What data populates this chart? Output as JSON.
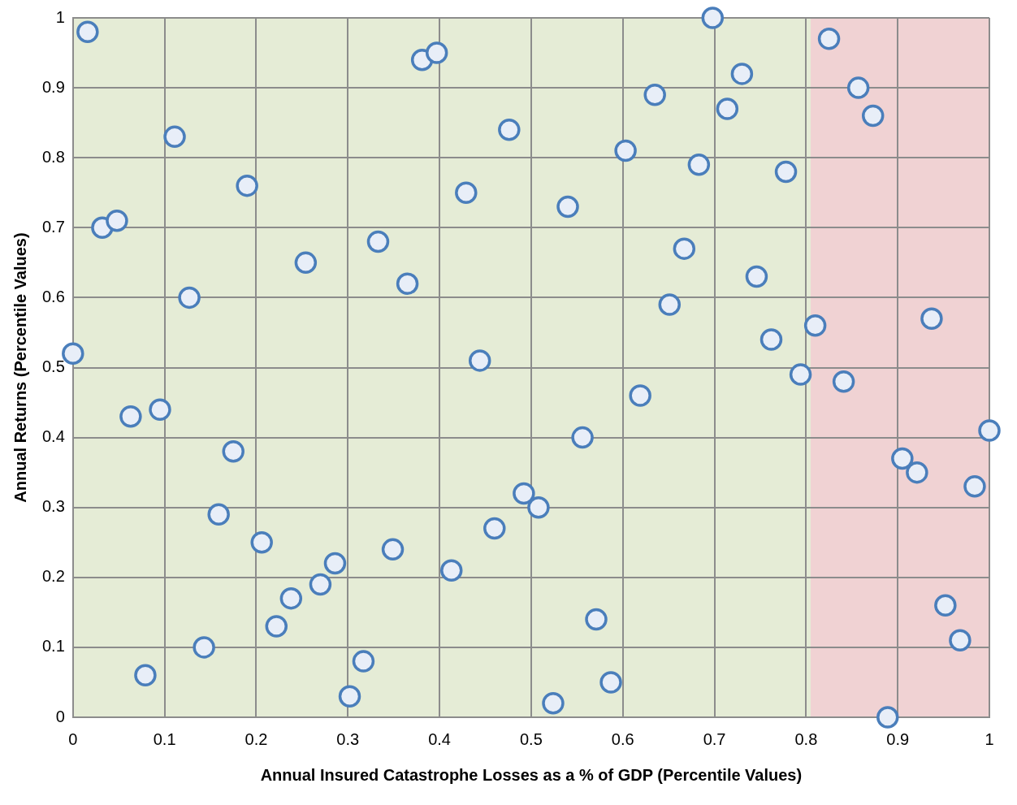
{
  "chart_data": {
    "type": "scatter",
    "xlabel": "Annual Insured Catastrophe Losses as a % of GDP (Percentile Values)",
    "ylabel": "Annual Returns (Percentile Values)",
    "x": [
      0,
      0.016,
      0.032,
      0.048,
      0.063,
      0.079,
      0.095,
      0.111,
      0.127,
      0.143,
      0.159,
      0.175,
      0.19,
      0.206,
      0.222,
      0.238,
      0.254,
      0.27,
      0.286,
      0.302,
      0.317,
      0.333,
      0.349,
      0.365,
      0.381,
      0.397,
      0.413,
      0.429,
      0.444,
      0.46,
      0.476,
      0.492,
      0.508,
      0.524,
      0.54,
      0.556,
      0.571,
      0.587,
      0.603,
      0.619,
      0.635,
      0.651,
      0.667,
      0.683,
      0.698,
      0.714,
      0.73,
      0.746,
      0.762,
      0.778,
      0.794,
      0.81,
      0.825,
      0.841,
      0.857,
      0.873,
      0.889,
      0.905,
      0.921,
      0.937,
      0.952,
      0.968,
      0.984,
      1
    ],
    "series": [
      {
        "color": "#4a7ebb",
        "values": [
          0.52,
          0.98,
          0.7,
          0.71,
          0.43,
          0.06,
          0.44,
          0.83,
          0.6,
          0.1,
          0.29,
          0.38,
          0.76,
          0.25,
          0.13,
          0.17,
          0.65,
          0.19,
          0.22,
          0.03,
          0.08,
          0.68,
          0.24,
          0.62,
          0.94,
          0.95,
          0.21,
          0.75,
          0.51,
          0.27,
          0.84,
          0.32,
          0.3,
          0.02,
          0.73,
          0.4,
          0.14,
          0.05,
          0.81,
          0.46,
          0.89,
          0.59,
          0.67,
          0.79,
          1,
          0.87,
          0.92,
          0.63,
          0.54,
          0.78,
          0.49,
          0.56,
          0.97,
          0.48,
          0.9,
          0.86,
          0,
          0.37,
          0.35,
          0.57,
          0.16,
          0.11,
          0.33,
          0.41
        ]
      }
    ],
    "xlim": [
      0,
      1
    ],
    "ylim": [
      0,
      1
    ],
    "xticks": [
      0,
      0.1,
      0.2,
      0.3,
      0.4,
      0.5,
      0.6,
      0.7,
      0.8,
      0.9,
      1
    ],
    "yticks": [
      0,
      0.1,
      0.2,
      0.3,
      0.4,
      0.5,
      0.6,
      0.7,
      0.8,
      0.9,
      1
    ],
    "bands": [
      {
        "axis": "x",
        "from": 0,
        "to": 0.805,
        "color": "#e5ecd6"
      },
      {
        "axis": "x",
        "from": 0.805,
        "to": 1,
        "color": "#f0d2d3"
      }
    ],
    "grid": true,
    "legend": false,
    "marker": "circle"
  }
}
